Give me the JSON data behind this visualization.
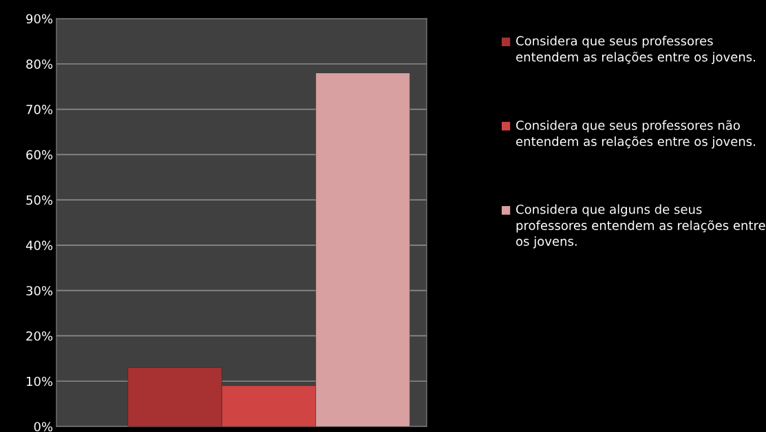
{
  "chart_data": {
    "type": "bar",
    "categories": [
      null
    ],
    "series": [
      {
        "name": "Considera que seus professores entendem as relações entre os jovens.",
        "color": "#a83232",
        "values": [
          13
        ]
      },
      {
        "name": "Considera que seus professores não entendem as relações entre os jovens.",
        "color": "#d04444",
        "values": [
          9
        ]
      },
      {
        "name": "Considera que alguns de seus professores entendem as relações entre os jovens.",
        "color": "#d8a0a0",
        "values": [
          78
        ]
      }
    ],
    "ylim": [
      0,
      90
    ],
    "yticks": [
      {
        "value": 0,
        "label": "0%"
      },
      {
        "value": 10,
        "label": "10%"
      },
      {
        "value": 20,
        "label": "20%"
      },
      {
        "value": 30,
        "label": "30%"
      },
      {
        "value": 40,
        "label": "40%"
      },
      {
        "value": 50,
        "label": "50%"
      },
      {
        "value": 60,
        "label": "60%"
      },
      {
        "value": 70,
        "label": "70%"
      },
      {
        "value": 80,
        "label": "80%"
      },
      {
        "value": 90,
        "label": "90%"
      }
    ],
    "grid": "y",
    "legend": "right"
  }
}
